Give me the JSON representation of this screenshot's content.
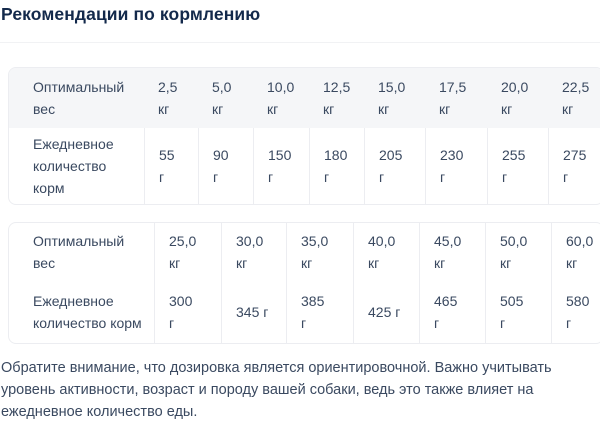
{
  "section": {
    "title": "Рекомендации по кормлению"
  },
  "tables": [
    {
      "name": "feeding-table-small-weights",
      "rows": [
        {
          "label_lines": [
            "Оптимальный",
            "вес"
          ],
          "cells": [
            [
              "2,5",
              "кг"
            ],
            [
              "5,0",
              "кг"
            ],
            [
              "10,0",
              "кг"
            ],
            [
              "12,5",
              "кг"
            ],
            [
              "15,0",
              "кг"
            ],
            [
              "17,5",
              "кг"
            ],
            [
              "20,0",
              "кг"
            ],
            [
              "22,5",
              "кг"
            ]
          ]
        },
        {
          "label_lines": [
            "Ежедневное",
            "количество",
            "корм"
          ],
          "cells": [
            [
              "55",
              "г"
            ],
            [
              "90",
              "г"
            ],
            [
              "150",
              "г"
            ],
            [
              "180",
              "г"
            ],
            [
              "205",
              "г"
            ],
            [
              "230",
              "г"
            ],
            [
              "255",
              "г"
            ],
            [
              "275",
              "г"
            ]
          ]
        }
      ]
    },
    {
      "name": "feeding-table-large-weights",
      "rows": [
        {
          "label_lines": [
            "Оптимальный",
            "вес"
          ],
          "cells": [
            [
              "25,0",
              "кг"
            ],
            [
              "30,0",
              "кг"
            ],
            [
              "35,0",
              "кг"
            ],
            [
              "40,0",
              "кг"
            ],
            [
              "45,0",
              "кг"
            ],
            [
              "50,0",
              "кг"
            ],
            [
              "60,0",
              "кг"
            ]
          ]
        },
        {
          "label_lines": [
            "Ежедневное",
            "количество корм"
          ],
          "cells": [
            [
              "300",
              "г"
            ],
            [
              "345 г"
            ],
            [
              "385",
              "г"
            ],
            [
              "425 г"
            ],
            [
              "465",
              "г"
            ],
            [
              "505",
              "г"
            ],
            [
              "580",
              "г"
            ]
          ]
        }
      ]
    }
  ],
  "note": {
    "lines": [
      "Обратите внимание, что дозировка является ориентировочной. Важно учитывать",
      "уровень активности, возраст и породу вашей собаки, ведь это также влияет на",
      "ежедневное количество еды."
    ]
  },
  "colors": {
    "title": "#13294b",
    "text": "#3a4960",
    "header_bg": "#f5f6f8",
    "border": "#ecedf1"
  }
}
